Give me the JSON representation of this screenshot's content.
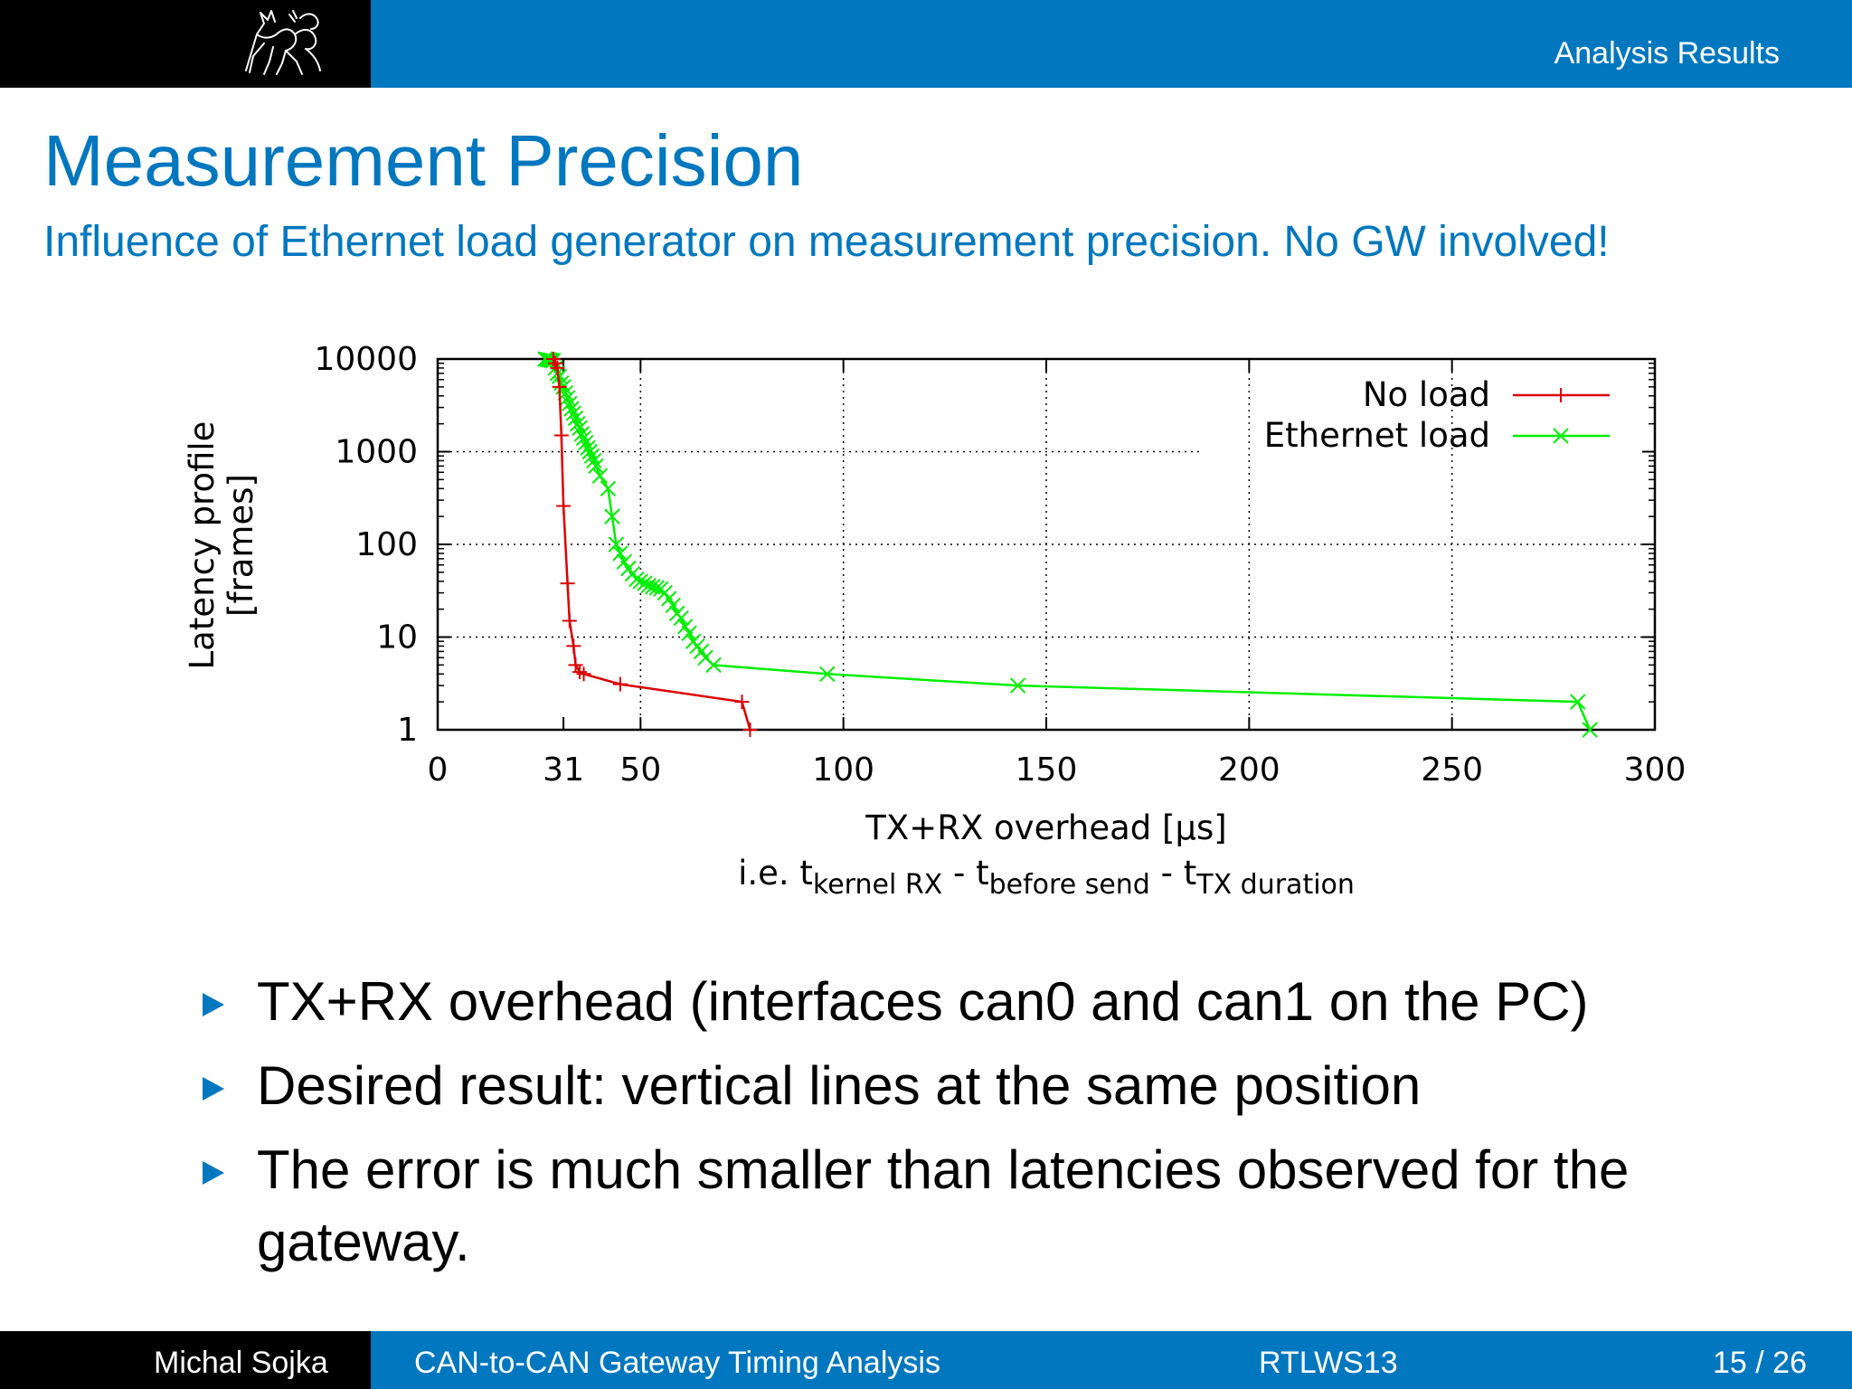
{
  "header": {
    "section": "Analysis Results"
  },
  "slide": {
    "title": "Measurement Precision",
    "subtitle": "Influence of Ethernet load generator on measurement precision. No GW involved!"
  },
  "bullets": [
    "TX+RX overhead (interfaces can0 and can1 on the PC)",
    "Desired result: vertical lines at the same position",
    "The error is much smaller than latencies observed for the gateway."
  ],
  "footer": {
    "author": "Michal Sojka",
    "talk": "CAN-to-CAN Gateway Timing Analysis",
    "event": "RTLWS13",
    "page": "15 / 26"
  },
  "chart_data": {
    "type": "line",
    "ylabel": [
      "Latency profile",
      "[frames]"
    ],
    "xlabel": "TX+RX overhead  [µs]",
    "xlabel2": {
      "prefix": "i.e. t",
      "sub1": "kernel RX",
      "mid1": " - t",
      "sub2": "before send",
      "mid2": " - t",
      "sub3": "TX duration"
    },
    "xlim": [
      0,
      300
    ],
    "ylim": [
      1,
      10000
    ],
    "yscale": "log",
    "xticks": [
      0,
      31,
      50,
      100,
      150,
      200,
      250,
      300
    ],
    "xgrid": [
      50,
      100,
      150,
      200,
      250
    ],
    "yticks": [
      1,
      10,
      100,
      1000,
      10000
    ],
    "grid": true,
    "legend_position": "top-right",
    "colors": {
      "no_load": "#dd0000",
      "eth_load": "#00ee00"
    },
    "series": [
      {
        "name": "No load",
        "color": "#dd0000",
        "marker": "plus",
        "points": [
          [
            28.5,
            10000
          ],
          [
            29,
            9000
          ],
          [
            29.5,
            8000
          ],
          [
            30,
            5000
          ],
          [
            30.5,
            1500
          ],
          [
            31,
            260
          ],
          [
            32,
            38
          ],
          [
            32.5,
            15
          ],
          [
            33.5,
            8
          ],
          [
            34,
            5
          ],
          [
            35,
            4.2
          ],
          [
            36,
            4
          ],
          [
            45,
            3.1
          ],
          [
            75,
            2
          ],
          [
            77,
            1
          ]
        ]
      },
      {
        "name": "Ethernet load",
        "color": "#00ee00",
        "marker": "x",
        "points": [
          [
            26.5,
            10000
          ],
          [
            27,
            9900
          ],
          [
            27.5,
            9800
          ],
          [
            28,
            9700
          ],
          [
            28.5,
            9600
          ],
          [
            29,
            8000
          ],
          [
            29.5,
            7000
          ],
          [
            30,
            6500
          ],
          [
            30.5,
            5500
          ],
          [
            31,
            5000
          ],
          [
            31.5,
            4300
          ],
          [
            32,
            3800
          ],
          [
            32.5,
            3300
          ],
          [
            33,
            2900
          ],
          [
            33.5,
            2600
          ],
          [
            34,
            2300
          ],
          [
            34.5,
            2000
          ],
          [
            35,
            1800
          ],
          [
            35.5,
            1550
          ],
          [
            36,
            1400
          ],
          [
            36.5,
            1250
          ],
          [
            37,
            1100
          ],
          [
            37.5,
            1000
          ],
          [
            38,
            900
          ],
          [
            38.5,
            800
          ],
          [
            39,
            700
          ],
          [
            40,
            550
          ],
          [
            42,
            400
          ],
          [
            43,
            200
          ],
          [
            44,
            100
          ],
          [
            45,
            80
          ],
          [
            46,
            65
          ],
          [
            47,
            55
          ],
          [
            48,
            48
          ],
          [
            49,
            42
          ],
          [
            50,
            40
          ],
          [
            51,
            38
          ],
          [
            52,
            36
          ],
          [
            53,
            35
          ],
          [
            54,
            34
          ],
          [
            55,
            33
          ],
          [
            56,
            30
          ],
          [
            57,
            26
          ],
          [
            58,
            22
          ],
          [
            59,
            18
          ],
          [
            60,
            16
          ],
          [
            61,
            13
          ],
          [
            62,
            11
          ],
          [
            63,
            9
          ],
          [
            64,
            8
          ],
          [
            65,
            7
          ],
          [
            66,
            6
          ],
          [
            68,
            5
          ],
          [
            96,
            4
          ],
          [
            143,
            3
          ],
          [
            281,
            2
          ],
          [
            284,
            1
          ]
        ]
      }
    ]
  }
}
